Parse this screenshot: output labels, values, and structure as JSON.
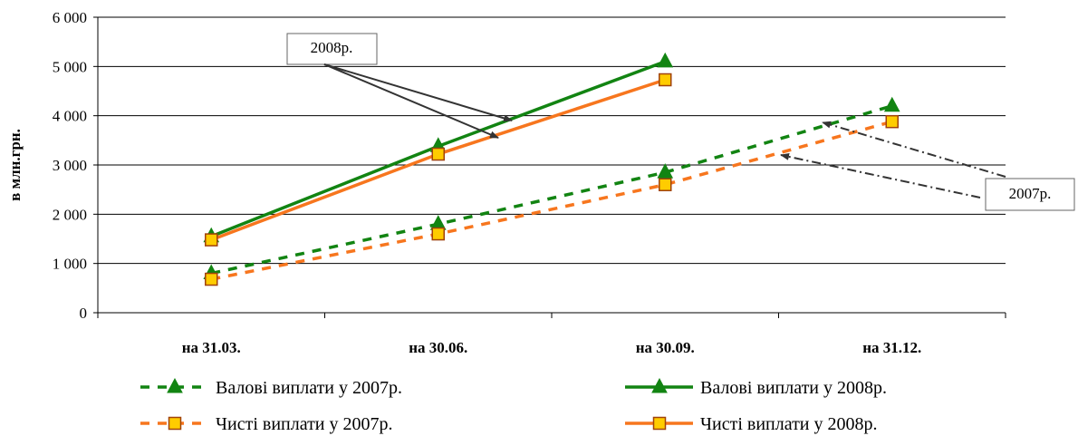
{
  "chart_data": {
    "type": "line",
    "categories": [
      "на 31.03.",
      "на 30.06.",
      "на 30.09.",
      "на 31.12."
    ],
    "ylabel": "в млн.грн.",
    "ylim": [
      0,
      6000
    ],
    "yticks": [
      0,
      1000,
      2000,
      3000,
      4000,
      5000,
      6000
    ],
    "ytick_labels": [
      "0",
      "1 000",
      "2 000",
      "3 000",
      "4 000",
      "5 000",
      "6 000"
    ],
    "grid": true,
    "legend_position": "bottom",
    "series": [
      {
        "name": "Валові виплати у 2007р.",
        "values": [
          800,
          1800,
          2850,
          4200
        ],
        "color": "#128412",
        "marker": "triangle",
        "dashed": true
      },
      {
        "name": "Валові виплати у 2008р.",
        "values": [
          1550,
          3380,
          5100,
          null
        ],
        "color": "#128412",
        "marker": "triangle",
        "dashed": false
      },
      {
        "name": "Чисті виплати у 2007р.",
        "values": [
          680,
          1600,
          2600,
          3880
        ],
        "color": "#f7761e",
        "marker": "square",
        "dashed": true
      },
      {
        "name": "Чисті виплати у 2008р.",
        "values": [
          1480,
          3220,
          4730,
          null
        ],
        "color": "#f7761e",
        "marker": "square",
        "dashed": false
      }
    ],
    "annotations": [
      {
        "text": "2008р.",
        "target_series": [
          "Валові виплати у 2008р.",
          "Чисті виплати у 2008р."
        ]
      },
      {
        "text": "2007р.",
        "target_series": [
          "Валові виплати у 2007р.",
          "Чисті виплати у 2007р."
        ]
      }
    ]
  }
}
